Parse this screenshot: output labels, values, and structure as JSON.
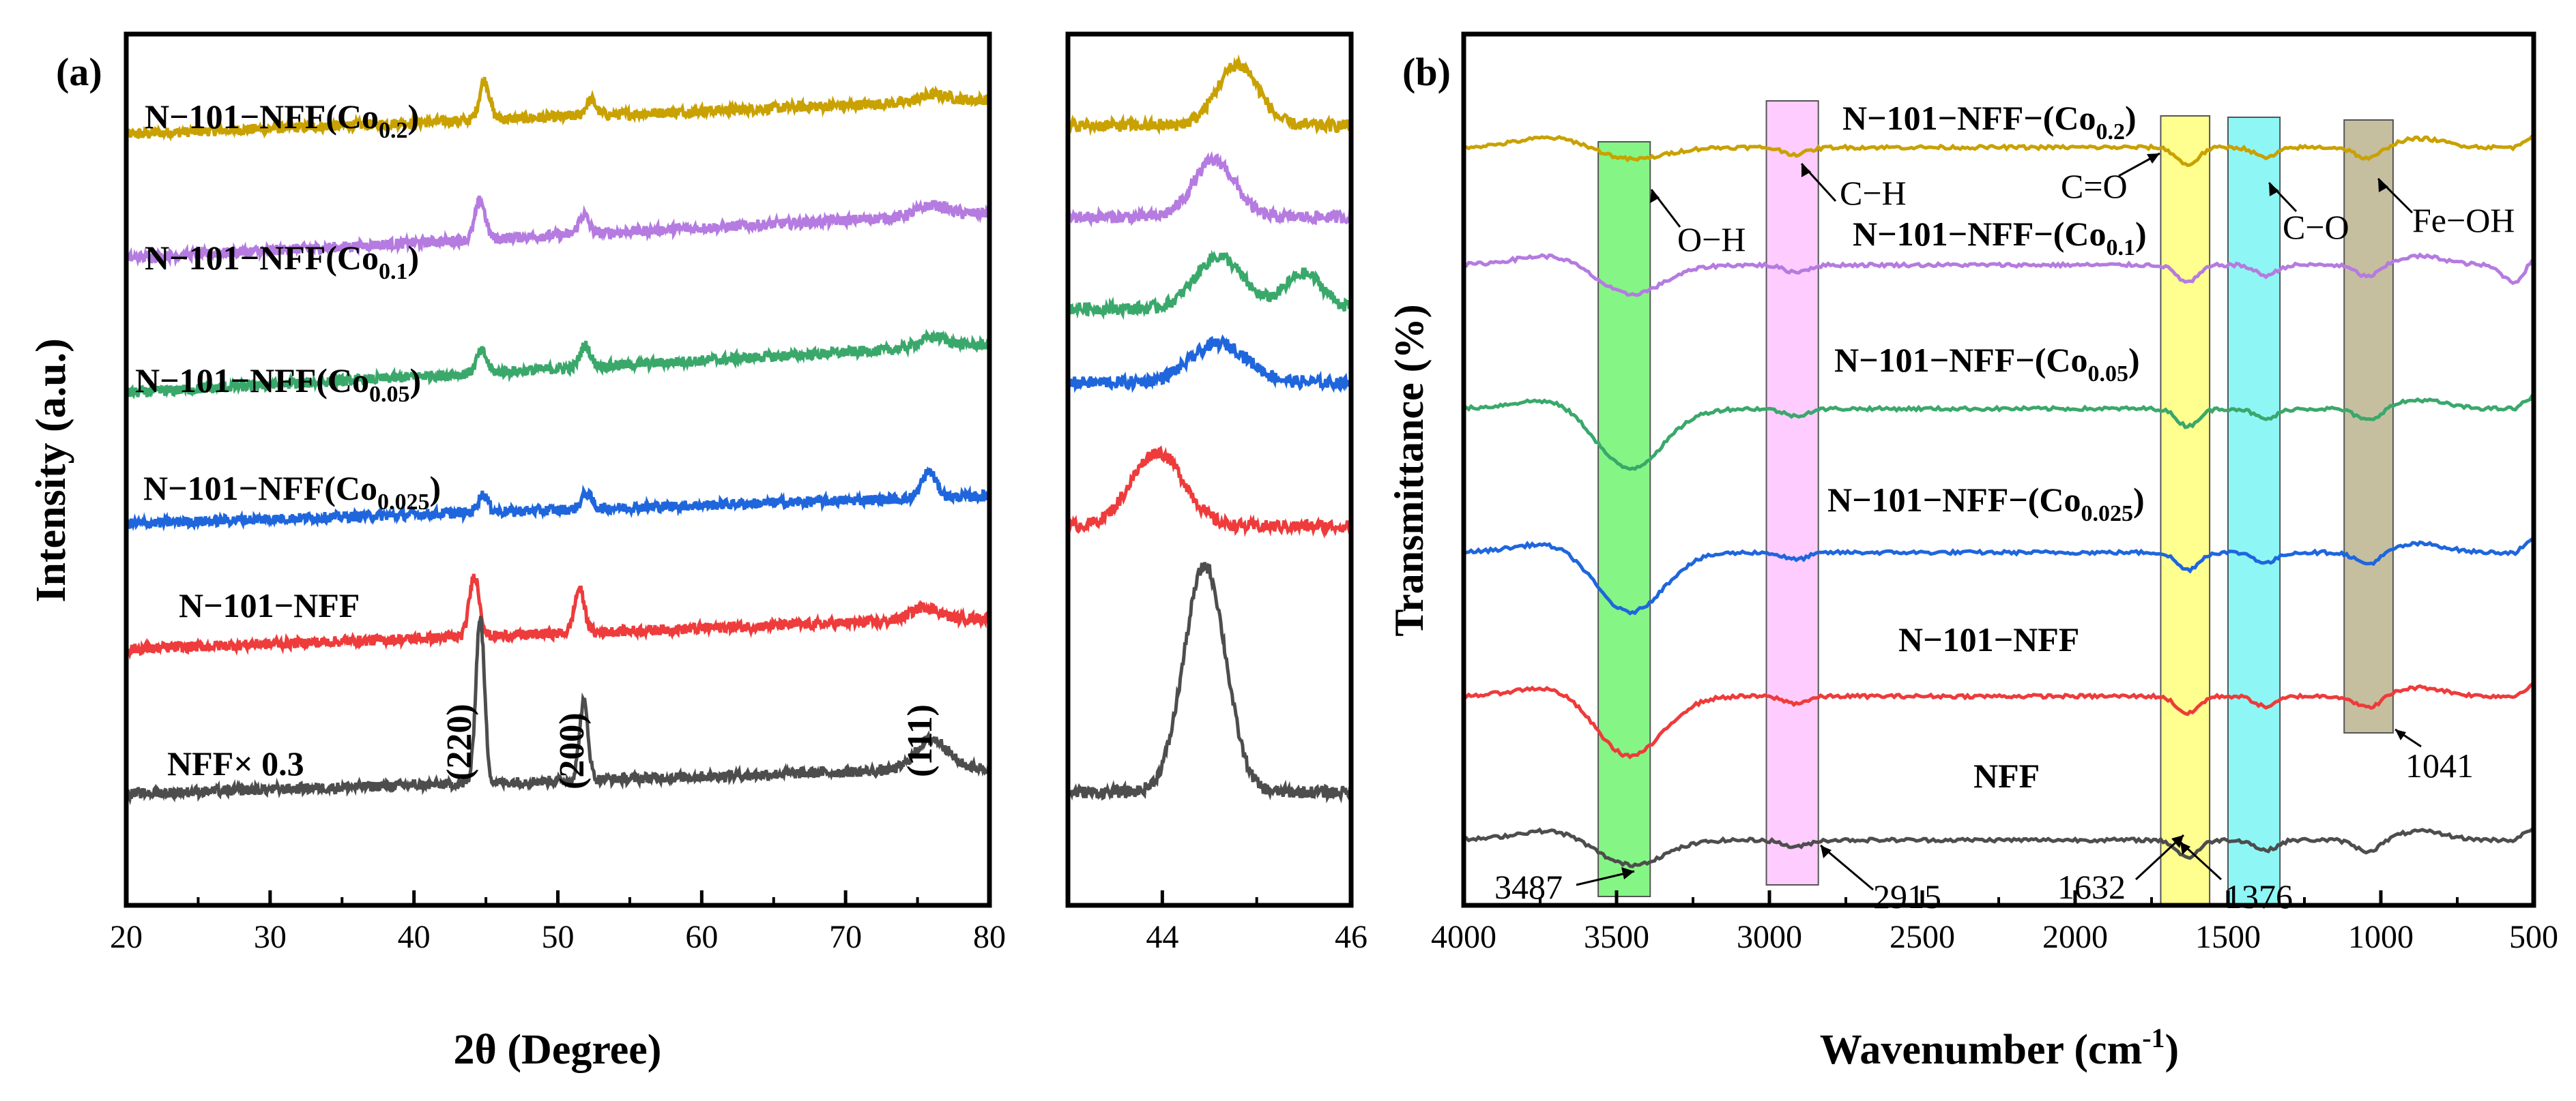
{
  "chart_data": [
    {
      "panel_label": "(a)",
      "type": "line",
      "xlabel": "2θ (Degree)",
      "ylabel": "Intensity (a.u.)",
      "xlim": [
        20,
        80
      ],
      "xticks": [
        "20",
        "30",
        "40",
        "50",
        "60",
        "70",
        "80"
      ],
      "series": [
        {
          "name": "N−101−NFF(Co0.2)",
          "label_base": "N−101−NFF(Co",
          "label_sub": "0.2",
          "label_end": ")",
          "color": "#C9A100",
          "base": 0.885,
          "slope": 0.04,
          "peaks": [
            [
              44.9,
              0.045,
              0.35
            ],
            [
              52.3,
              0.018,
              0.35
            ],
            [
              76.2,
              0.008,
              1.0
            ]
          ]
        },
        {
          "name": "N−101−NFF(Co0.1)",
          "label_base": "N−101−NFF(Co",
          "label_sub": "0.1",
          "label_end": ")",
          "color": "#B57BE0",
          "base": 0.743,
          "slope": 0.052,
          "peaks": [
            [
              44.6,
              0.045,
              0.35
            ],
            [
              51.8,
              0.022,
              0.35
            ],
            [
              76.0,
              0.012,
              1.0
            ]
          ]
        },
        {
          "name": "N−101−NFF(Co0.05)",
          "label_base": "N−101−NFF(Co",
          "label_sub": "0.05",
          "label_end": ")",
          "color": "#3AA86B",
          "base": 0.588,
          "slope": 0.056,
          "peaks": [
            [
              44.7,
              0.025,
              0.35
            ],
            [
              51.9,
              0.025,
              0.35
            ],
            [
              76.1,
              0.012,
              1.0
            ]
          ]
        },
        {
          "name": "N−101−NFF(Co0.025)",
          "label_base": "N−101−NFF(Co",
          "label_sub": "0.025",
          "label_end": ")",
          "color": "#1F66DD",
          "base": 0.438,
          "slope": 0.032,
          "peaks": [
            [
              44.8,
              0.02,
              0.35
            ],
            [
              52.0,
              0.018,
              0.35
            ],
            [
              75.8,
              0.03,
              0.5
            ]
          ]
        },
        {
          "name": "N−101−NFF",
          "label_base": "N−101−NFF",
          "label_sub": "",
          "label_end": "",
          "color": "#EE3B3B",
          "base": 0.294,
          "slope": 0.036,
          "peaks": [
            [
              44.2,
              0.07,
              0.35
            ],
            [
              51.5,
              0.05,
              0.35
            ],
            [
              75.5,
              0.015,
              1.0
            ]
          ]
        },
        {
          "name": "NFF× 0.3",
          "label_base": "NFF× 0.3",
          "label_sub": "",
          "label_end": "",
          "color": "#4D4D4D",
          "base": 0.128,
          "slope": 0.03,
          "peaks": [
            [
              44.6,
              0.19,
              0.3
            ],
            [
              51.8,
              0.09,
              0.3
            ],
            [
              76.0,
              0.035,
              1.1
            ]
          ]
        }
      ],
      "annotations": [
        "(220)",
        "(200)",
        "(111)"
      ]
    },
    {
      "panel_label": "",
      "type": "line",
      "description_role": "zoom inset of panel (a)",
      "xlim": [
        43,
        46
      ],
      "xticks": [
        "44",
        "46"
      ],
      "series": [
        {
          "color": "#C9A100",
          "base": 0.895,
          "center": 44.8,
          "height": 0.07,
          "width": 0.22,
          "second": null
        },
        {
          "color": "#B57BE0",
          "base": 0.79,
          "center": 44.55,
          "height": 0.065,
          "width": 0.22,
          "second": null
        },
        {
          "color": "#3AA86B",
          "base": 0.685,
          "center": 44.6,
          "height": 0.06,
          "width": 0.25,
          "second": [
            45.5,
            0.04,
            0.2
          ]
        },
        {
          "color": "#1F66DD",
          "base": 0.6,
          "center": 44.6,
          "height": 0.045,
          "width": 0.3,
          "second": null
        },
        {
          "color": "#EE3B3B",
          "base": 0.435,
          "center": 43.95,
          "height": 0.085,
          "width": 0.28,
          "second": null
        },
        {
          "color": "#4D4D4D",
          "base": 0.13,
          "center": 44.45,
          "height": 0.26,
          "width": 0.22,
          "second": null
        }
      ]
    },
    {
      "panel_label": "(b)",
      "type": "line",
      "xlabel_base": "Wavenumber (cm",
      "xlabel_sup": "-1",
      "xlabel_end": ")",
      "ylabel": "Transmittance (%)",
      "xlim": [
        4000,
        500
      ],
      "xticks": [
        "4000",
        "3500",
        "3000",
        "2500",
        "2000",
        "1500",
        "1000",
        "500"
      ],
      "series": [
        {
          "name": "N−101−NFF−(Co0.2)",
          "label_base": "N−101−NFF−(Co",
          "label_sub": "0.2",
          "label_end": ")",
          "color": "#C9A100",
          "base": 0.87,
          "oh_depth": 0.015
        },
        {
          "name": "N−101−NFF−(Co0.1)",
          "label_base": "N−101−NFF−(Co",
          "label_sub": "0.1",
          "label_end": ")",
          "color": "#B57BE0",
          "base": 0.735,
          "oh_depth": 0.035
        },
        {
          "name": "N−101−NFF−(Co0.05)",
          "label_base": "N−101−NFF−(Co",
          "label_sub": "0.05",
          "label_end": ")",
          "color": "#3AA86B",
          "base": 0.57,
          "oh_depth": 0.07
        },
        {
          "name": "N−101−NFF−(Co0.025)",
          "label_base": "N−101−NFF−(Co",
          "label_sub": "0.025",
          "label_end": ")",
          "color": "#1F66DD",
          "base": 0.405,
          "oh_depth": 0.07
        },
        {
          "name": "N−101−NFF",
          "label_base": "N−101−NFF",
          "label_sub": "",
          "label_end": "",
          "color": "#EE3B3B",
          "base": 0.24,
          "oh_depth": 0.07
        },
        {
          "name": "NFF",
          "label_base": "NFF",
          "label_sub": "",
          "label_end": "",
          "color": "#4D4D4D",
          "base": 0.075,
          "oh_depth": 0.03
        }
      ],
      "bands": [
        {
          "name": "O−H",
          "from": 3560,
          "to": 3390,
          "color": "#33EE33",
          "opacity": 0.6
        },
        {
          "name": "C−H",
          "from": 3010,
          "to": 2840,
          "color": "#FF99FF",
          "opacity": 0.5
        },
        {
          "name": "C=O",
          "from": 1720,
          "to": 1560,
          "color": "#FFFF33",
          "opacity": 0.55
        },
        {
          "name": "C−O",
          "from": 1500,
          "to": 1330,
          "color": "#33EEEE",
          "opacity": 0.55
        },
        {
          "name": "Fe−OH",
          "from": 1120,
          "to": 960,
          "color": "#8C8040",
          "opacity": 0.5
        }
      ],
      "peak_labels": [
        "3487",
        "2915",
        "1632",
        "1376",
        "1041"
      ],
      "group_labels": [
        "O−H",
        "C−H",
        "C=O",
        "C−O",
        "Fe−OH"
      ]
    }
  ]
}
